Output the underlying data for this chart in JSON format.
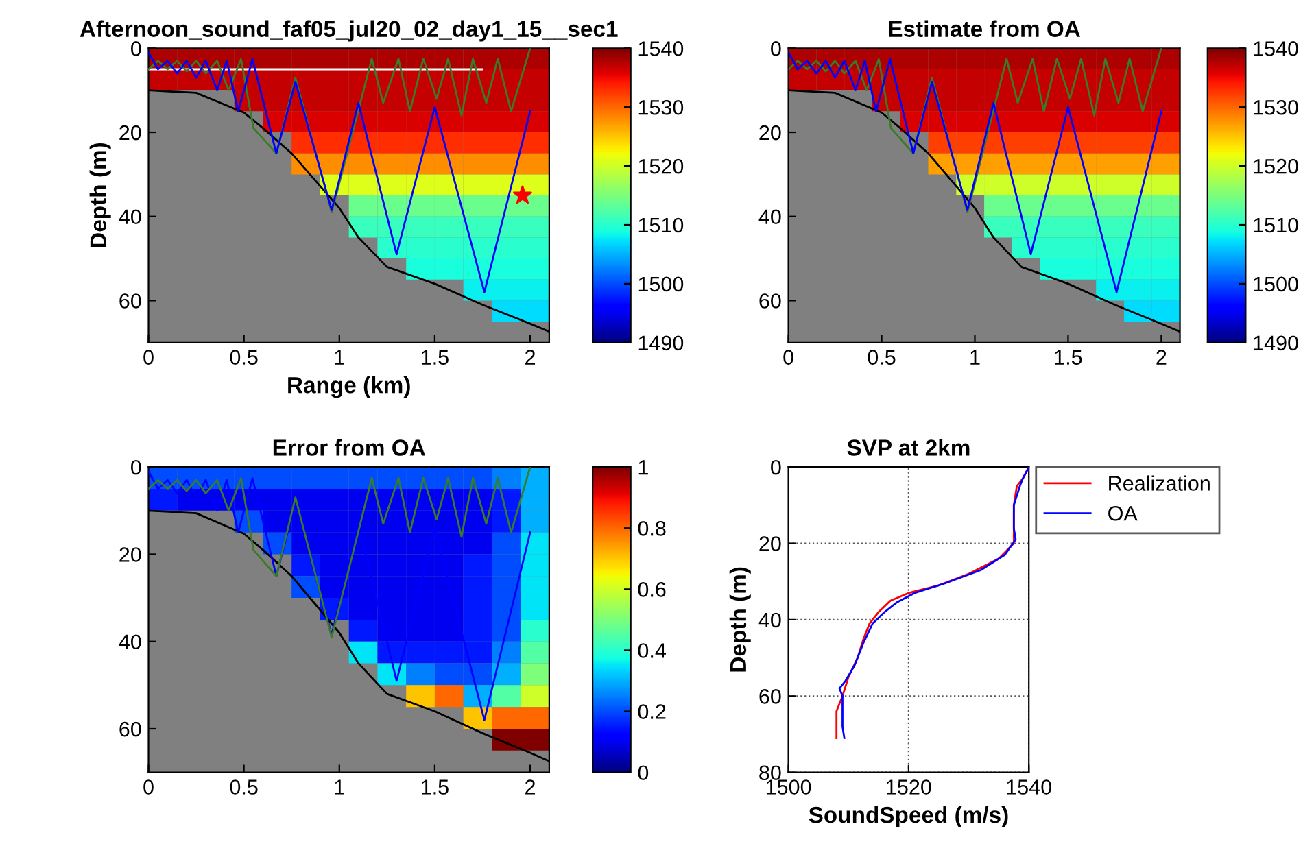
{
  "chart_data": [
    {
      "type": "heatmap",
      "title": "Afternoon_sound_faf05_jul20_02_day1_15__sec1",
      "xlabel": "Range (km)",
      "ylabel": "Depth (m)",
      "x": [
        0.075,
        0.225,
        0.375,
        0.525,
        0.675,
        0.825,
        0.975,
        1.125,
        1.275,
        1.425,
        1.575,
        1.725,
        1.875,
        2.025
      ],
      "y": [
        2.5,
        7.5,
        12.5,
        17.5,
        22.5,
        27.5,
        32.5,
        37.5,
        42.5,
        47.5,
        52.5,
        57.5,
        62.5
      ],
      "cells": [
        [
          1538,
          1538,
          1538,
          1538,
          1538,
          1538,
          1538,
          1538,
          1538,
          1538,
          1538,
          1538,
          1538,
          1538
        ],
        [
          1537,
          1537,
          1537,
          1537,
          1537,
          1537,
          1537,
          1537,
          1537,
          1537,
          1537,
          1537,
          1537,
          1537
        ],
        [
          null,
          null,
          null,
          1537,
          1537,
          1537,
          1537,
          1537,
          1537,
          1537,
          1537,
          1537,
          1537,
          1537
        ],
        [
          null,
          null,
          null,
          null,
          1536,
          1536,
          1536,
          1536,
          1536,
          1536,
          1536,
          1536,
          1536,
          1536
        ],
        [
          null,
          null,
          null,
          null,
          null,
          1533,
          1533,
          1533,
          1533,
          1533,
          1533,
          1533,
          1533,
          1533
        ],
        [
          null,
          null,
          null,
          null,
          null,
          1528,
          1528,
          1528,
          1528,
          1528,
          1528,
          1528,
          1528,
          1528
        ],
        [
          null,
          null,
          null,
          null,
          null,
          null,
          1521,
          1521,
          1521,
          1521,
          1521,
          1521,
          1521,
          1521
        ],
        [
          null,
          null,
          null,
          null,
          null,
          null,
          null,
          1514,
          1514,
          1514,
          1514,
          1514,
          1514,
          1514
        ],
        [
          null,
          null,
          null,
          null,
          null,
          null,
          null,
          1511,
          1511,
          1511,
          1511,
          1511,
          1511,
          1511
        ],
        [
          null,
          null,
          null,
          null,
          null,
          null,
          null,
          null,
          1510,
          1510,
          1510,
          1510,
          1510,
          1510
        ],
        [
          null,
          null,
          null,
          null,
          null,
          null,
          null,
          null,
          null,
          1509,
          1509,
          1509,
          1509,
          1509
        ],
        [
          null,
          null,
          null,
          null,
          null,
          null,
          null,
          null,
          null,
          null,
          null,
          1508,
          1508,
          1508
        ],
        [
          null,
          null,
          null,
          null,
          null,
          null,
          null,
          null,
          null,
          null,
          null,
          null,
          1507,
          1507
        ]
      ],
      "clim": [
        1490,
        1540
      ],
      "cticks": [
        1490,
        1500,
        1510,
        1520,
        1530,
        1540
      ],
      "xlim": [
        0,
        2.1
      ],
      "ylim": [
        70,
        0
      ],
      "xticks": [
        0,
        0.5,
        1,
        1.5,
        2
      ],
      "yticks": [
        0,
        20,
        40,
        60
      ],
      "series": [
        {
          "type": "line",
          "color": "#000000",
          "x": [
            0,
            0.25,
            0.5,
            0.6,
            0.75,
            1.0,
            1.1,
            1.25,
            1.5,
            1.75,
            2.0,
            2.1
          ],
          "values": [
            10,
            10.6,
            15.3,
            19,
            25,
            38,
            45,
            52,
            56,
            61,
            65.5,
            67.4
          ]
        },
        {
          "type": "line",
          "color": "#ffffff",
          "x": [
            0,
            1.75
          ],
          "values": [
            5,
            5
          ]
        },
        {
          "type": "line",
          "color": "#3a7a2a",
          "x": [
            0,
            0.05,
            0.1,
            0.15,
            0.2,
            0.25,
            0.3,
            0.36,
            0.42,
            0.485,
            0.55,
            0.67,
            0.77,
            0.96,
            1.11,
            1.17,
            1.23,
            1.31,
            1.37,
            1.44,
            1.51,
            1.57,
            1.64,
            1.7,
            1.77,
            1.83,
            1.9,
            2.0
          ],
          "values": [
            5,
            3,
            5,
            3,
            5.5,
            3,
            6,
            3,
            10,
            2.6,
            19,
            25,
            7,
            39,
            13,
            2.5,
            13,
            2.5,
            15,
            2.5,
            12,
            2.5,
            16,
            2.5,
            13,
            2.5,
            15,
            0
          ]
        },
        {
          "type": "line",
          "color": "#0000ff",
          "x": [
            0,
            0.05,
            0.1,
            0.15,
            0.2,
            0.25,
            0.3,
            0.36,
            0.41,
            0.47,
            0.545,
            0.67,
            0.77,
            0.96,
            1.1,
            1.3,
            1.5,
            1.76,
            2.0
          ],
          "values": [
            1,
            5,
            3,
            6,
            3,
            7,
            3,
            10,
            3,
            15,
            2.6,
            25,
            8,
            38.5,
            13,
            49,
            14,
            58,
            15
          ]
        },
        {
          "type": "scatter",
          "marker": "star",
          "color": "#ff0000",
          "x": [
            1.96
          ],
          "values": [
            35
          ]
        }
      ]
    },
    {
      "type": "heatmap",
      "title": "Estimate from OA",
      "x": [
        0.075,
        0.225,
        0.375,
        0.525,
        0.675,
        0.825,
        0.975,
        1.125,
        1.275,
        1.425,
        1.575,
        1.725,
        1.875,
        2.025
      ],
      "y": [
        2.5,
        7.5,
        12.5,
        17.5,
        22.5,
        27.5,
        32.5,
        37.5,
        42.5,
        47.5,
        52.5,
        57.5,
        62.5
      ],
      "cells": [
        [
          1538,
          1538,
          1538,
          1538,
          1538,
          1538,
          1538,
          1538,
          1538,
          1538,
          1538,
          1538,
          1538,
          1538
        ],
        [
          1537,
          1537,
          1537,
          1537,
          1537,
          1537,
          1537,
          1537,
          1537,
          1537,
          1537,
          1537,
          1537,
          1537
        ],
        [
          null,
          null,
          null,
          1537,
          1537,
          1537,
          1537,
          1537,
          1537,
          1537,
          1537,
          1537,
          1537,
          1537
        ],
        [
          null,
          null,
          null,
          null,
          1536,
          1536,
          1536,
          1536,
          1536,
          1536,
          1536,
          1536,
          1536,
          1536
        ],
        [
          null,
          null,
          null,
          null,
          null,
          1532,
          1532,
          1532,
          1532,
          1532,
          1532,
          1532,
          1532,
          1532
        ],
        [
          null,
          null,
          null,
          null,
          null,
          1527,
          1527,
          1527,
          1527,
          1527,
          1527,
          1527,
          1527,
          1527
        ],
        [
          null,
          null,
          null,
          null,
          null,
          null,
          1520,
          1520,
          1520,
          1520,
          1520,
          1520,
          1520,
          1520
        ],
        [
          null,
          null,
          null,
          null,
          null,
          null,
          null,
          1514,
          1514,
          1514,
          1514,
          1514,
          1514,
          1514
        ],
        [
          null,
          null,
          null,
          null,
          null,
          null,
          null,
          1511,
          1511,
          1511,
          1511,
          1511,
          1511,
          1511
        ],
        [
          null,
          null,
          null,
          null,
          null,
          null,
          null,
          null,
          1510,
          1510,
          1510,
          1510,
          1510,
          1510
        ],
        [
          null,
          null,
          null,
          null,
          null,
          null,
          null,
          null,
          null,
          1509,
          1509,
          1509,
          1509,
          1509
        ],
        [
          null,
          null,
          null,
          null,
          null,
          null,
          null,
          null,
          null,
          null,
          null,
          1508,
          1508,
          1508
        ],
        [
          null,
          null,
          null,
          null,
          null,
          null,
          null,
          null,
          null,
          null,
          null,
          null,
          1507,
          1507
        ]
      ],
      "clim": [
        1490,
        1540
      ],
      "cticks": [
        1490,
        1500,
        1510,
        1520,
        1530,
        1540
      ],
      "xlim": [
        0,
        2.1
      ],
      "ylim": [
        70,
        0
      ],
      "xticks": [
        0,
        0.5,
        1,
        1.5,
        2
      ],
      "yticks": [
        0,
        20,
        40,
        60
      ],
      "series": [
        {
          "type": "line",
          "color": "#000000",
          "x": [
            0,
            0.25,
            0.5,
            0.6,
            0.75,
            1.0,
            1.1,
            1.25,
            1.5,
            1.75,
            2.0,
            2.1
          ],
          "values": [
            10,
            10.6,
            15.3,
            19,
            25,
            38,
            45,
            52,
            56,
            61,
            65.5,
            67.4
          ]
        },
        {
          "type": "line",
          "color": "#3a7a2a",
          "x": [
            0,
            0.05,
            0.1,
            0.15,
            0.2,
            0.25,
            0.3,
            0.36,
            0.42,
            0.485,
            0.55,
            0.67,
            0.77,
            0.96,
            1.11,
            1.17,
            1.23,
            1.31,
            1.37,
            1.44,
            1.51,
            1.57,
            1.64,
            1.7,
            1.77,
            1.83,
            1.9,
            2.0
          ],
          "values": [
            5,
            3,
            5,
            3,
            5.5,
            3,
            6,
            3,
            10,
            2.6,
            19,
            25,
            7,
            39,
            13,
            2.5,
            13,
            2.5,
            15,
            2.5,
            12,
            2.5,
            16,
            2.5,
            13,
            2.5,
            15,
            0
          ]
        },
        {
          "type": "line",
          "color": "#0000ff",
          "x": [
            0,
            0.05,
            0.1,
            0.15,
            0.2,
            0.25,
            0.3,
            0.36,
            0.41,
            0.47,
            0.545,
            0.67,
            0.77,
            0.96,
            1.1,
            1.3,
            1.5,
            1.76,
            2.0
          ],
          "values": [
            1,
            5,
            3,
            6,
            3,
            7,
            3,
            10,
            3,
            15,
            2.6,
            25,
            8,
            38.5,
            13,
            49,
            14,
            58,
            15
          ]
        }
      ]
    },
    {
      "type": "heatmap",
      "title": "Error from OA",
      "x": [
        0.075,
        0.225,
        0.375,
        0.525,
        0.675,
        0.825,
        0.975,
        1.125,
        1.275,
        1.425,
        1.575,
        1.725,
        1.875,
        2.025
      ],
      "y": [
        2.5,
        7.5,
        12.5,
        17.5,
        22.5,
        27.5,
        32.5,
        37.5,
        42.5,
        47.5,
        52.5,
        57.5,
        62.5
      ],
      "cells": [
        [
          0.2,
          0.2,
          0.2,
          0.2,
          0.2,
          0.2,
          0.2,
          0.2,
          0.2,
          0.2,
          0.2,
          0.2,
          0.25,
          0.3
        ],
        [
          0.15,
          0.1,
          0.1,
          0.1,
          0.1,
          0.1,
          0.1,
          0.1,
          0.1,
          0.1,
          0.1,
          0.1,
          0.15,
          0.3
        ],
        [
          null,
          null,
          null,
          0.2,
          0.1,
          0.1,
          0.1,
          0.1,
          0.1,
          0.1,
          0.1,
          0.1,
          0.15,
          0.3
        ],
        [
          null,
          null,
          null,
          null,
          0.2,
          0.1,
          0.1,
          0.1,
          0.1,
          0.1,
          0.1,
          0.1,
          0.2,
          0.35
        ],
        [
          null,
          null,
          null,
          null,
          null,
          0.15,
          0.1,
          0.1,
          0.1,
          0.1,
          0.1,
          0.15,
          0.2,
          0.35
        ],
        [
          null,
          null,
          null,
          null,
          null,
          0.2,
          0.1,
          0.1,
          0.1,
          0.1,
          0.1,
          0.15,
          0.2,
          0.35
        ],
        [
          null,
          null,
          null,
          null,
          null,
          null,
          0.15,
          0.1,
          0.1,
          0.1,
          0.1,
          0.15,
          0.2,
          0.35
        ],
        [
          null,
          null,
          null,
          null,
          null,
          null,
          null,
          0.15,
          0.1,
          0.1,
          0.1,
          0.15,
          0.2,
          0.4
        ],
        [
          null,
          null,
          null,
          null,
          null,
          null,
          null,
          0.35,
          0.15,
          0.15,
          0.15,
          0.15,
          0.25,
          0.45
        ],
        [
          null,
          null,
          null,
          null,
          null,
          null,
          null,
          null,
          0.35,
          0.25,
          0.2,
          0.2,
          0.3,
          0.5
        ],
        [
          null,
          null,
          null,
          null,
          null,
          null,
          null,
          null,
          null,
          0.7,
          0.8,
          0.3,
          0.45,
          0.6
        ],
        [
          null,
          null,
          null,
          null,
          null,
          null,
          null,
          null,
          null,
          null,
          null,
          0.7,
          0.8,
          0.8
        ],
        [
          null,
          null,
          null,
          null,
          null,
          null,
          null,
          null,
          null,
          null,
          null,
          null,
          1.0,
          1.0
        ]
      ],
      "clim": [
        0,
        1
      ],
      "cticks": [
        0,
        0.2,
        0.4,
        0.6,
        0.8,
        1
      ],
      "xlim": [
        0,
        2.1
      ],
      "ylim": [
        70,
        0
      ],
      "xticks": [
        0,
        0.5,
        1,
        1.5,
        2
      ],
      "yticks": [
        0,
        20,
        40,
        60
      ],
      "series": [
        {
          "type": "line",
          "color": "#000000",
          "x": [
            0,
            0.25,
            0.5,
            0.6,
            0.75,
            1.0,
            1.1,
            1.25,
            1.5,
            1.75,
            2.0,
            2.1
          ],
          "values": [
            10,
            10.6,
            15.3,
            19,
            25,
            38,
            45,
            52,
            56,
            61,
            65.5,
            67.4
          ]
        },
        {
          "type": "line",
          "color": "#0000ff",
          "x": [
            0,
            0.05,
            0.1,
            0.15,
            0.2,
            0.25,
            0.3,
            0.36,
            0.41,
            0.47,
            0.545,
            0.67,
            0.77,
            0.96,
            1.1,
            1.3,
            1.5,
            1.76,
            2.0
          ],
          "values": [
            1,
            5,
            3,
            6,
            3,
            7,
            3,
            10,
            3,
            15,
            2.6,
            25,
            8,
            38.5,
            13,
            49,
            14,
            58,
            15
          ]
        },
        {
          "type": "line",
          "color": "#3a7a2a",
          "x": [
            0,
            0.05,
            0.1,
            0.15,
            0.2,
            0.25,
            0.3,
            0.36,
            0.42,
            0.485,
            0.55,
            0.67,
            0.77,
            0.96,
            1.11,
            1.17,
            1.23,
            1.31,
            1.37,
            1.44,
            1.51,
            1.57,
            1.64,
            1.7,
            1.77,
            1.83,
            1.9,
            2.0
          ],
          "values": [
            5,
            3,
            5,
            3,
            5.5,
            3,
            6,
            3,
            10,
            2.6,
            19,
            25,
            7,
            39,
            13,
            2.5,
            13,
            2.5,
            15,
            2.5,
            12,
            2.5,
            16,
            2.5,
            13,
            2.5,
            15,
            0
          ]
        }
      ]
    },
    {
      "type": "line",
      "title": "SVP at 2km",
      "xlabel": "SoundSpeed (m/s)",
      "ylabel": "Depth (m)",
      "xlim": [
        1500,
        1540
      ],
      "ylim": [
        80,
        0
      ],
      "xticks": [
        1500,
        1520,
        1540
      ],
      "yticks": [
        0,
        20,
        40,
        60,
        80
      ],
      "grid": true,
      "legend": "top right",
      "series": [
        {
          "name": "Realization",
          "color": "#ff0000",
          "x": [
            1540,
            1539,
            1538,
            1537.5,
            1537.5,
            1537.5,
            1535,
            1530,
            1525,
            1520,
            1517,
            1515,
            1513.5,
            1512.5,
            1511.5,
            1510,
            1509,
            1508,
            1508
          ],
          "values": [
            0,
            3,
            5,
            10,
            15,
            20,
            24,
            28,
            31,
            33,
            35,
            38,
            41,
            45,
            50,
            55,
            60,
            64,
            71
          ]
        },
        {
          "name": "OA",
          "color": "#0000ff",
          "x": [
            1540,
            1539,
            1538.5,
            1537.5,
            1537.5,
            1537.8,
            1536,
            1532,
            1526,
            1521,
            1518,
            1516,
            1514,
            1512.5,
            1511,
            1509.5,
            1508.5,
            1509,
            1509,
            1509.3
          ],
          "values": [
            0,
            3,
            5,
            10,
            16,
            19,
            23,
            27,
            30.5,
            33,
            35.5,
            38,
            41,
            46,
            52,
            56,
            58,
            60,
            68,
            71
          ]
        }
      ]
    }
  ]
}
